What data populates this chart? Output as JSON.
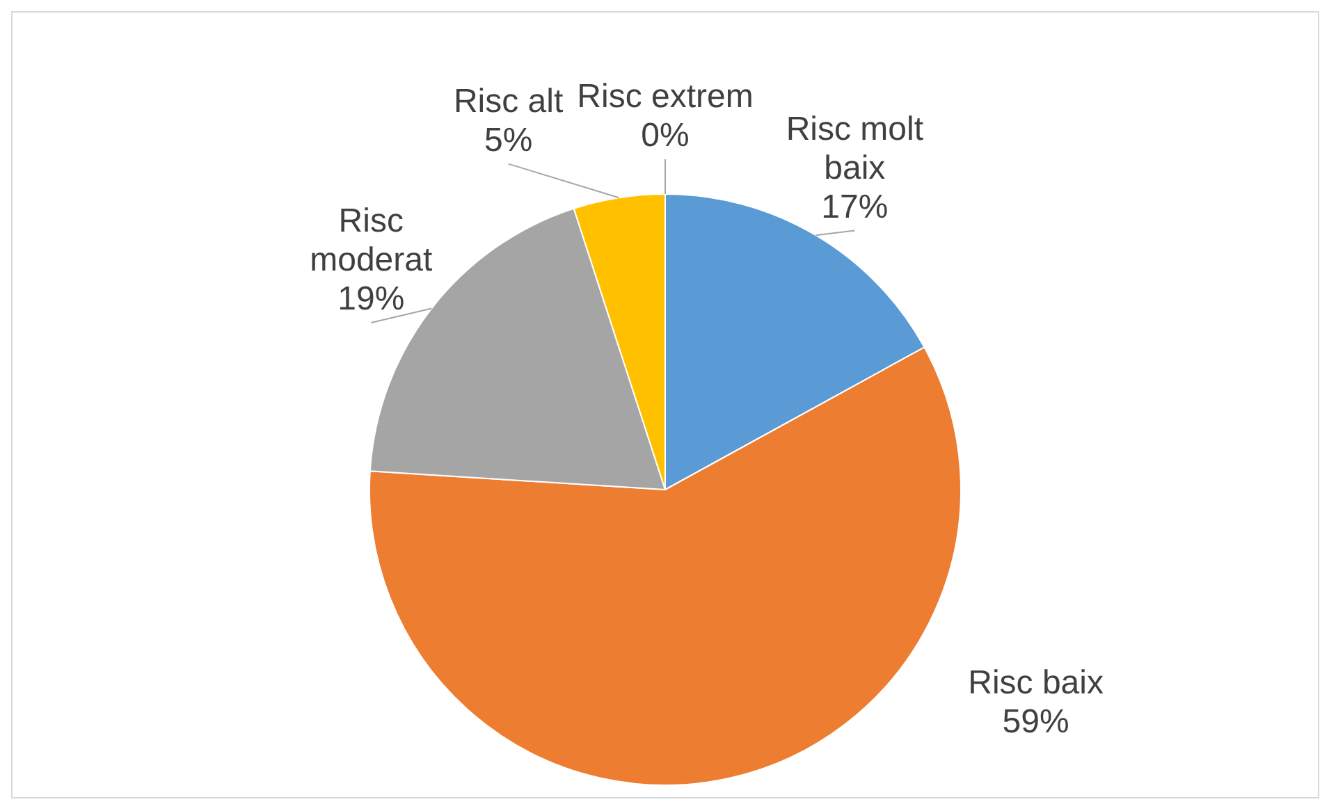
{
  "chart_data": {
    "type": "pie",
    "categories": [
      "Risc molt baix",
      "Risc baix",
      "Risc moderat",
      "Risc alt",
      "Risc extrem"
    ],
    "values": [
      17,
      59,
      19,
      5,
      0
    ],
    "value_labels": [
      "17%",
      "59%",
      "19%",
      "5%",
      "0%"
    ],
    "colors": [
      "#5b9bd5",
      "#ed7d31",
      "#a5a5a5",
      "#ffc000",
      "#4472c4"
    ],
    "legend": false
  }
}
